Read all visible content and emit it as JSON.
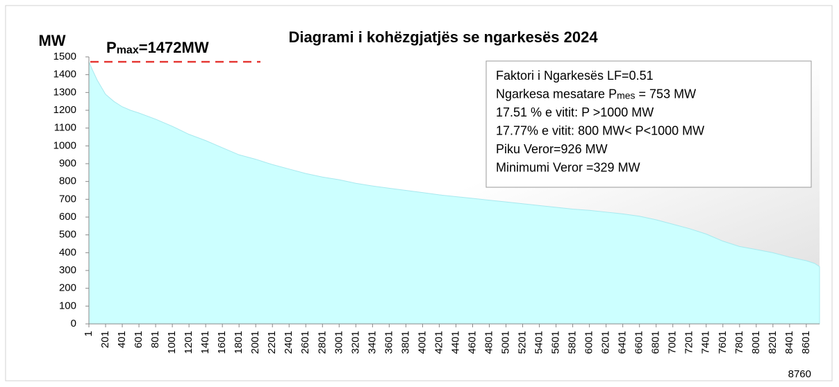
{
  "chart_data": {
    "type": "area",
    "title": "Diagrami i kohëzgjatjës se ngarkesës 2024",
    "y_label": "MW",
    "color": "#ccffff",
    "x": [
      1,
      50,
      100,
      200,
      300,
      400,
      500,
      600,
      800,
      1000,
      1200,
      1400,
      1600,
      1800,
      2000,
      2200,
      2400,
      2600,
      2800,
      3000,
      3200,
      3400,
      3600,
      3800,
      4000,
      4200,
      4400,
      4600,
      4800,
      5000,
      5200,
      5400,
      5600,
      5800,
      6000,
      6200,
      6400,
      6600,
      6800,
      7000,
      7200,
      7400,
      7600,
      7800,
      8000,
      8200,
      8400,
      8600,
      8700,
      8760
    ],
    "values": [
      1472,
      1420,
      1370,
      1290,
      1250,
      1220,
      1200,
      1185,
      1150,
      1110,
      1065,
      1030,
      990,
      950,
      925,
      895,
      870,
      845,
      825,
      810,
      790,
      775,
      762,
      750,
      738,
      725,
      715,
      705,
      695,
      685,
      675,
      665,
      655,
      645,
      638,
      628,
      618,
      605,
      585,
      560,
      535,
      505,
      465,
      435,
      418,
      400,
      375,
      355,
      340,
      322
    ],
    "xlim": [
      1,
      8760
    ],
    "xticks": [
      1,
      201,
      401,
      601,
      801,
      1001,
      1201,
      1401,
      1601,
      1801,
      2001,
      2201,
      2401,
      2601,
      2801,
      3001,
      3201,
      3401,
      3601,
      3801,
      4001,
      4201,
      4401,
      4601,
      4801,
      5001,
      5201,
      5401,
      5601,
      5801,
      6001,
      6201,
      6401,
      6601,
      6801,
      7001,
      7201,
      7401,
      7601,
      7801,
      8001,
      8201,
      8401,
      8601
    ],
    "ylim": [
      0,
      1500
    ],
    "yticks": [
      0,
      100,
      200,
      300,
      400,
      500,
      600,
      700,
      800,
      900,
      1000,
      1100,
      1200,
      1300,
      1400,
      1500
    ],
    "reference_line": {
      "value": 1472,
      "color": "#e53935",
      "label": {
        "main": "P",
        "sub": "max",
        "rest": "=1472MW"
      }
    },
    "info_box": [
      "Faktori i Ngarkesës LF=0.51",
      {
        "pre": "Ngarkesa mesatare P",
        "sub": "mes",
        "post": " = 753 MW"
      },
      "17.51 % e vitit: P >1000 MW",
      "17.77% e vitit: 800 MW< P<1000 MW",
      "Piku Veror=926 MW",
      "Minimumi Veror =329 MW"
    ]
  }
}
